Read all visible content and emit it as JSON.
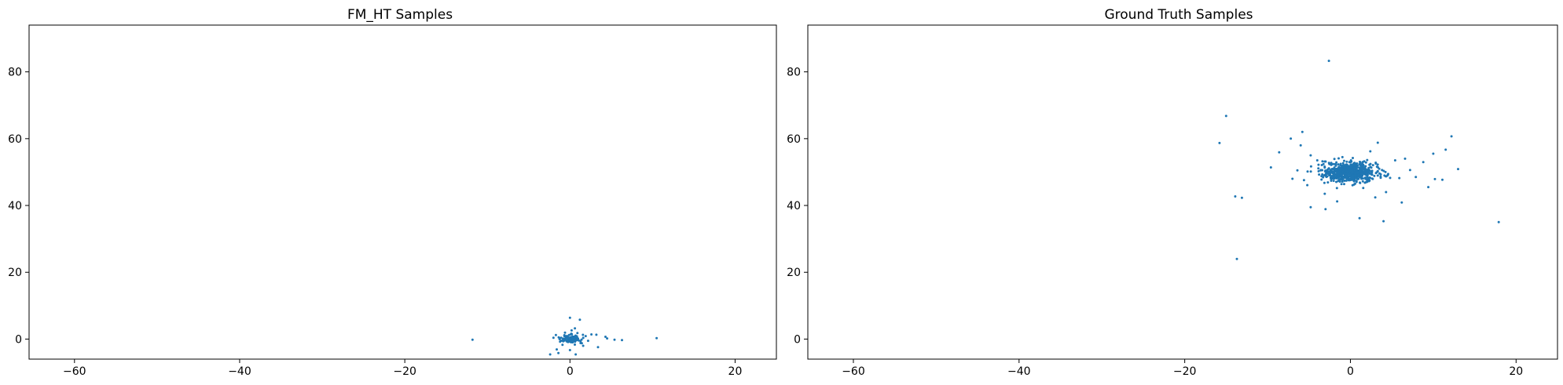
{
  "chart_data": [
    {
      "type": "scatter",
      "title": "FM_HT Samples",
      "xlabel": "",
      "ylabel": "",
      "xlim": [
        -65.5,
        25
      ],
      "ylim": [
        -6,
        94
      ],
      "xticks": [
        -60,
        -40,
        -20,
        0,
        20
      ],
      "yticks": [
        0,
        20,
        40,
        60,
        80
      ],
      "grid": false,
      "marker_color": "#1f77b4",
      "cluster": {
        "center": [
          0,
          0
        ],
        "spread": [
          0.6,
          0.6
        ],
        "n": 120
      },
      "points": [
        [
          -11.8,
          -0.2
        ],
        [
          10.5,
          0.3
        ],
        [
          6.3,
          -0.3
        ],
        [
          5.4,
          -0.2
        ],
        [
          4.5,
          0.2
        ],
        [
          4.3,
          0.7
        ],
        [
          3.4,
          -2.4
        ],
        [
          3.2,
          1.3
        ],
        [
          2.6,
          1.4
        ],
        [
          1.2,
          5.8
        ],
        [
          0.0,
          6.4
        ],
        [
          0.6,
          3.2
        ],
        [
          0.7,
          -4.6
        ],
        [
          0.0,
          -3.3
        ],
        [
          -1.4,
          -4.2
        ],
        [
          -2.4,
          -4.6
        ],
        [
          -1.6,
          -3.1
        ],
        [
          -1.7,
          1.2
        ],
        [
          -2.0,
          0.4
        ],
        [
          1.6,
          -2.0
        ],
        [
          -0.9,
          -1.7
        ],
        [
          1.3,
          -1.0
        ],
        [
          0.2,
          2.6
        ],
        [
          -0.6,
          1.9
        ],
        [
          1.9,
          0.9
        ],
        [
          2.2,
          -0.5
        ],
        [
          -1.2,
          -0.8
        ],
        [
          0.9,
          1.8
        ]
      ]
    },
    {
      "type": "scatter",
      "title": "Ground Truth Samples",
      "xlabel": "",
      "ylabel": "",
      "xlim": [
        -65.5,
        25
      ],
      "ylim": [
        -6,
        94
      ],
      "xticks": [
        -60,
        -40,
        -20,
        0,
        20
      ],
      "yticks": [
        0,
        20,
        40,
        60,
        80
      ],
      "grid": false,
      "marker_color": "#1f77b4",
      "cluster": {
        "center": [
          0,
          50
        ],
        "spread": [
          1.6,
          1.4
        ],
        "n": 700
      },
      "points": [
        [
          -2.6,
          83.3
        ],
        [
          -15.0,
          66.8
        ],
        [
          -15.8,
          58.7
        ],
        [
          -13.9,
          42.7
        ],
        [
          -13.1,
          42.3
        ],
        [
          -13.7,
          24.0
        ],
        [
          -5.8,
          62.0
        ],
        [
          -7.2,
          60.0
        ],
        [
          -8.6,
          55.9
        ],
        [
          -9.6,
          51.4
        ],
        [
          -6.0,
          58.0
        ],
        [
          -4.8,
          55.0
        ],
        [
          -6.4,
          50.5
        ],
        [
          -5.6,
          47.6
        ],
        [
          -5.2,
          46.1
        ],
        [
          -4.8,
          39.5
        ],
        [
          -3.0,
          38.9
        ],
        [
          1.1,
          36.2
        ],
        [
          4.0,
          35.3
        ],
        [
          3.3,
          58.8
        ],
        [
          6.2,
          40.9
        ],
        [
          10.2,
          47.9
        ],
        [
          11.1,
          47.7
        ],
        [
          12.2,
          60.7
        ],
        [
          11.5,
          56.7
        ],
        [
          13.0,
          50.9
        ],
        [
          9.4,
          45.5
        ],
        [
          17.9,
          35.0
        ],
        [
          7.9,
          48.5
        ],
        [
          8.8,
          53.0
        ],
        [
          10.0,
          55.5
        ],
        [
          6.6,
          54.0
        ],
        [
          5.9,
          48.2
        ],
        [
          4.3,
          44.0
        ],
        [
          -3.1,
          43.5
        ],
        [
          -1.6,
          41.2
        ],
        [
          3.0,
          42.4
        ],
        [
          -7.0,
          48.0
        ],
        [
          7.2,
          50.6
        ],
        [
          5.4,
          53.5
        ],
        [
          -4.0,
          53.5
        ],
        [
          2.4,
          56.2
        ]
      ]
    }
  ]
}
